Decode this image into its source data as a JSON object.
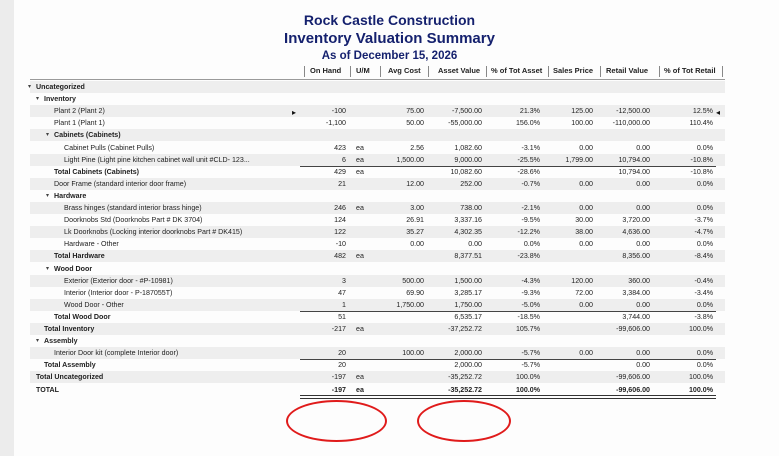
{
  "report": {
    "company": "Rock Castle Construction",
    "title": "Inventory Valuation Summary",
    "date": "As of December 15, 2026"
  },
  "columns": {
    "on_hand": "On Hand",
    "um": "U/M",
    "avg_cost": "Avg Cost",
    "asset_value": "Asset Value",
    "pct_tot_asset": "% of Tot Asset",
    "sales_price": "Sales Price",
    "retail_value": "Retail Value",
    "pct_tot_retail": "% of Tot Retail"
  },
  "rows": [
    {
      "label": "Uncategorized",
      "indent": 0,
      "bold": true,
      "arrow": true
    },
    {
      "label": "Inventory",
      "indent": 1,
      "bold": true,
      "arrow": true
    },
    {
      "label": "Plant 2 (Plant 2)",
      "indent": 2,
      "on_hand": "-100",
      "avg_cost": "75.00",
      "asset_value": "-7,500.00",
      "pct_tot_asset": "21.3%",
      "sales_price": "125.00",
      "retail_value": "-12,500.00",
      "pct_tot_retail": "12.5%"
    },
    {
      "label": "Plant 1 (Plant 1)",
      "indent": 2,
      "on_hand": "-1,100",
      "avg_cost": "50.00",
      "asset_value": "-55,000.00",
      "pct_tot_asset": "156.0%",
      "sales_price": "100.00",
      "retail_value": "-110,000.00",
      "pct_tot_retail": "110.4%"
    },
    {
      "label": "Cabinets (Cabinets)",
      "indent": 2,
      "bold": true,
      "arrow": true
    },
    {
      "label": "Cabinet Pulls (Cabinet Pulls)",
      "indent": 3,
      "on_hand": "423",
      "um": "ea",
      "avg_cost": "2.56",
      "asset_value": "1,082.60",
      "pct_tot_asset": "-3.1%",
      "sales_price": "0.00",
      "retail_value": "0.00",
      "pct_tot_retail": "0.0%"
    },
    {
      "label": "Light Pine (Light pine kitchen cabinet wall unit  #CLD- 123...",
      "indent": 3,
      "on_hand": "6",
      "um": "ea",
      "avg_cost": "1,500.00",
      "asset_value": "9,000.00",
      "pct_tot_asset": "-25.5%",
      "sales_price": "1,799.00",
      "retail_value": "10,794.00",
      "pct_tot_retail": "-10.8%",
      "sub_ul": true
    },
    {
      "label": "Total Cabinets (Cabinets)",
      "indent": 2,
      "bold": true,
      "on_hand": "429",
      "um": "ea",
      "asset_value": "10,082.60",
      "pct_tot_asset": "-28.6%",
      "retail_value": "10,794.00",
      "pct_tot_retail": "-10.8%"
    },
    {
      "label": "Door Frame (standard interior door frame)",
      "indent": 2,
      "on_hand": "21",
      "avg_cost": "12.00",
      "asset_value": "252.00",
      "pct_tot_asset": "-0.7%",
      "sales_price": "0.00",
      "retail_value": "0.00",
      "pct_tot_retail": "0.0%"
    },
    {
      "label": "Hardware",
      "indent": 2,
      "bold": true,
      "arrow": true
    },
    {
      "label": "Brass hinges (standard interior brass hinge)",
      "indent": 3,
      "on_hand": "246",
      "um": "ea",
      "avg_cost": "3.00",
      "asset_value": "738.00",
      "pct_tot_asset": "-2.1%",
      "sales_price": "0.00",
      "retail_value": "0.00",
      "pct_tot_retail": "0.0%"
    },
    {
      "label": "Doorknobs Std (Doorknobs Part # DK 3704)",
      "indent": 3,
      "on_hand": "124",
      "avg_cost": "26.91",
      "asset_value": "3,337.16",
      "pct_tot_asset": "-9.5%",
      "sales_price": "30.00",
      "retail_value": "3,720.00",
      "pct_tot_retail": "-3.7%"
    },
    {
      "label": "Lk Doorknobs (Locking interior doorknobs  Part # DK415)",
      "indent": 3,
      "on_hand": "122",
      "avg_cost": "35.27",
      "asset_value": "4,302.35",
      "pct_tot_asset": "-12.2%",
      "sales_price": "38.00",
      "retail_value": "4,636.00",
      "pct_tot_retail": "-4.7%"
    },
    {
      "label": "Hardware - Other",
      "indent": 3,
      "on_hand": "-10",
      "avg_cost": "0.00",
      "asset_value": "0.00",
      "pct_tot_asset": "0.0%",
      "sales_price": "0.00",
      "retail_value": "0.00",
      "pct_tot_retail": "0.0%",
      "sub_ul": true
    },
    {
      "label": "Total Hardware",
      "indent": 2,
      "bold": true,
      "on_hand": "482",
      "um": "ea",
      "asset_value": "8,377.51",
      "pct_tot_asset": "-23.8%",
      "retail_value": "8,356.00",
      "pct_tot_retail": "-8.4%"
    },
    {
      "label": "Wood Door",
      "indent": 2,
      "bold": true,
      "arrow": true
    },
    {
      "label": "Exterior (Exterior door - #P-10981)",
      "indent": 3,
      "on_hand": "3",
      "avg_cost": "500.00",
      "asset_value": "1,500.00",
      "pct_tot_asset": "-4.3%",
      "sales_price": "120.00",
      "retail_value": "360.00",
      "pct_tot_retail": "-0.4%"
    },
    {
      "label": "Interior (Interior door - P-187055T)",
      "indent": 3,
      "on_hand": "47",
      "avg_cost": "69.90",
      "asset_value": "3,285.17",
      "pct_tot_asset": "-9.3%",
      "sales_price": "72.00",
      "retail_value": "3,384.00",
      "pct_tot_retail": "-3.4%"
    },
    {
      "label": "Wood Door - Other",
      "indent": 3,
      "on_hand": "1",
      "avg_cost": "1,750.00",
      "asset_value": "1,750.00",
      "pct_tot_asset": "-5.0%",
      "sales_price": "0.00",
      "retail_value": "0.00",
      "pct_tot_retail": "0.0%",
      "sub_ul": true
    },
    {
      "label": "Total Wood Door",
      "indent": 2,
      "bold": true,
      "on_hand": "51",
      "asset_value": "6,535.17",
      "pct_tot_asset": "-18.5%",
      "retail_value": "3,744.00",
      "pct_tot_retail": "-3.8%",
      "sub_ul": true
    },
    {
      "label": "Total Inventory",
      "indent": 1,
      "bold": true,
      "on_hand": "-217",
      "um": "ea",
      "asset_value": "-37,252.72",
      "pct_tot_asset": "105.7%",
      "retail_value": "-99,606.00",
      "pct_tot_retail": "100.0%"
    },
    {
      "label": "Assembly",
      "indent": 1,
      "bold": true,
      "arrow": true
    },
    {
      "label": "Interior Door kit (complete Interior door)",
      "indent": 2,
      "on_hand": "20",
      "avg_cost": "100.00",
      "asset_value": "2,000.00",
      "pct_tot_asset": "-5.7%",
      "sales_price": "0.00",
      "retail_value": "0.00",
      "pct_tot_retail": "0.0%",
      "sub_ul": true
    },
    {
      "label": "Total Assembly",
      "indent": 1,
      "bold": true,
      "on_hand": "20",
      "asset_value": "2,000.00",
      "pct_tot_asset": "-5.7%",
      "retail_value": "0.00",
      "pct_tot_retail": "0.0%",
      "sub_ul": true
    },
    {
      "label": "Total Uncategorized",
      "indent": 0,
      "bold": true,
      "on_hand": "-197",
      "um": "ea",
      "asset_value": "-35,252.72",
      "pct_tot_asset": "100.0%",
      "retail_value": "-99,606.00",
      "pct_tot_retail": "100.0%"
    },
    {
      "label": "TOTAL",
      "indent": 0,
      "bold": true,
      "on_hand": "-197",
      "um": "ea",
      "asset_value": "-35,252.72",
      "pct_tot_asset": "100.0%",
      "retail_value": "-99,606.00",
      "pct_tot_retail": "100.0%",
      "grand": true
    }
  ],
  "annotations": {
    "circle_color": "#e01b1b",
    "highlighted": [
      "on_hand total",
      "asset_value total"
    ]
  }
}
